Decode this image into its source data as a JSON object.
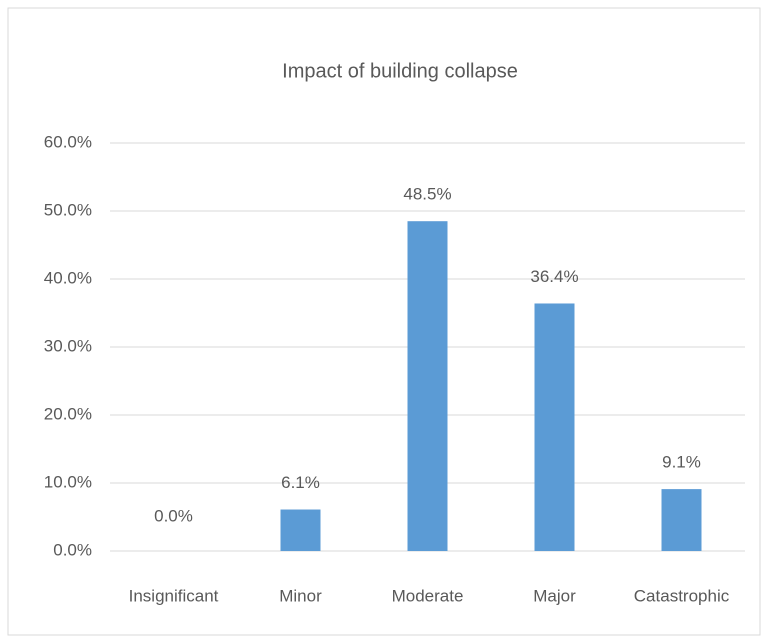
{
  "chart_data": {
    "type": "bar",
    "title": "Impact of building collapse",
    "categories": [
      "Insignificant",
      "Minor",
      "Moderate",
      "Major",
      "Catastrophic"
    ],
    "values": [
      0.0,
      6.1,
      48.5,
      36.4,
      9.1
    ],
    "value_labels": [
      "0.0%",
      "6.1%",
      "48.5%",
      "36.4%",
      "9.1%"
    ],
    "color": "#5b9bd5",
    "ylim": [
      0,
      60
    ],
    "yticks": [
      {
        "value": 0,
        "label": "0.0%"
      },
      {
        "value": 10,
        "label": "10.0%"
      },
      {
        "value": 20,
        "label": "20.0%"
      },
      {
        "value": 30,
        "label": "30.0%"
      },
      {
        "value": 40,
        "label": "40.0%"
      },
      {
        "value": 50,
        "label": "50.0%"
      },
      {
        "value": 60,
        "label": "60.0%"
      }
    ],
    "grid": true
  }
}
